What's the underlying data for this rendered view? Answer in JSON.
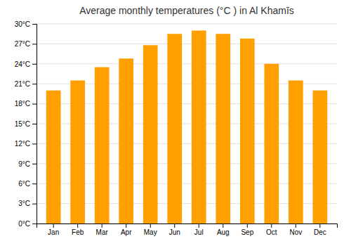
{
  "chart_data": {
    "type": "bar",
    "title": "Average monthly temperatures (°C ) in Al Khamīs",
    "categories": [
      "Jan",
      "Feb",
      "Mar",
      "Apr",
      "May",
      "Jun",
      "Jul",
      "Aug",
      "Sep",
      "Oct",
      "Nov",
      "Dec"
    ],
    "values": [
      20.0,
      21.5,
      23.5,
      24.8,
      26.8,
      28.5,
      29.0,
      28.5,
      27.8,
      24.0,
      21.5,
      20.0
    ],
    "color": "#FFA000",
    "ylim": [
      0,
      30
    ],
    "yticks": [
      {
        "value": 0,
        "label": "0°C"
      },
      {
        "value": 3,
        "label": "3°C"
      },
      {
        "value": 6,
        "label": "6°C"
      },
      {
        "value": 9,
        "label": "9°C"
      },
      {
        "value": 12,
        "label": "12°C"
      },
      {
        "value": 15,
        "label": "15°C"
      },
      {
        "value": 18,
        "label": "18°C"
      },
      {
        "value": 21,
        "label": "21°C"
      },
      {
        "value": 24,
        "label": "24°C"
      },
      {
        "value": 27,
        "label": "27°C"
      },
      {
        "value": 30,
        "label": "30°C"
      }
    ],
    "grid": true
  }
}
